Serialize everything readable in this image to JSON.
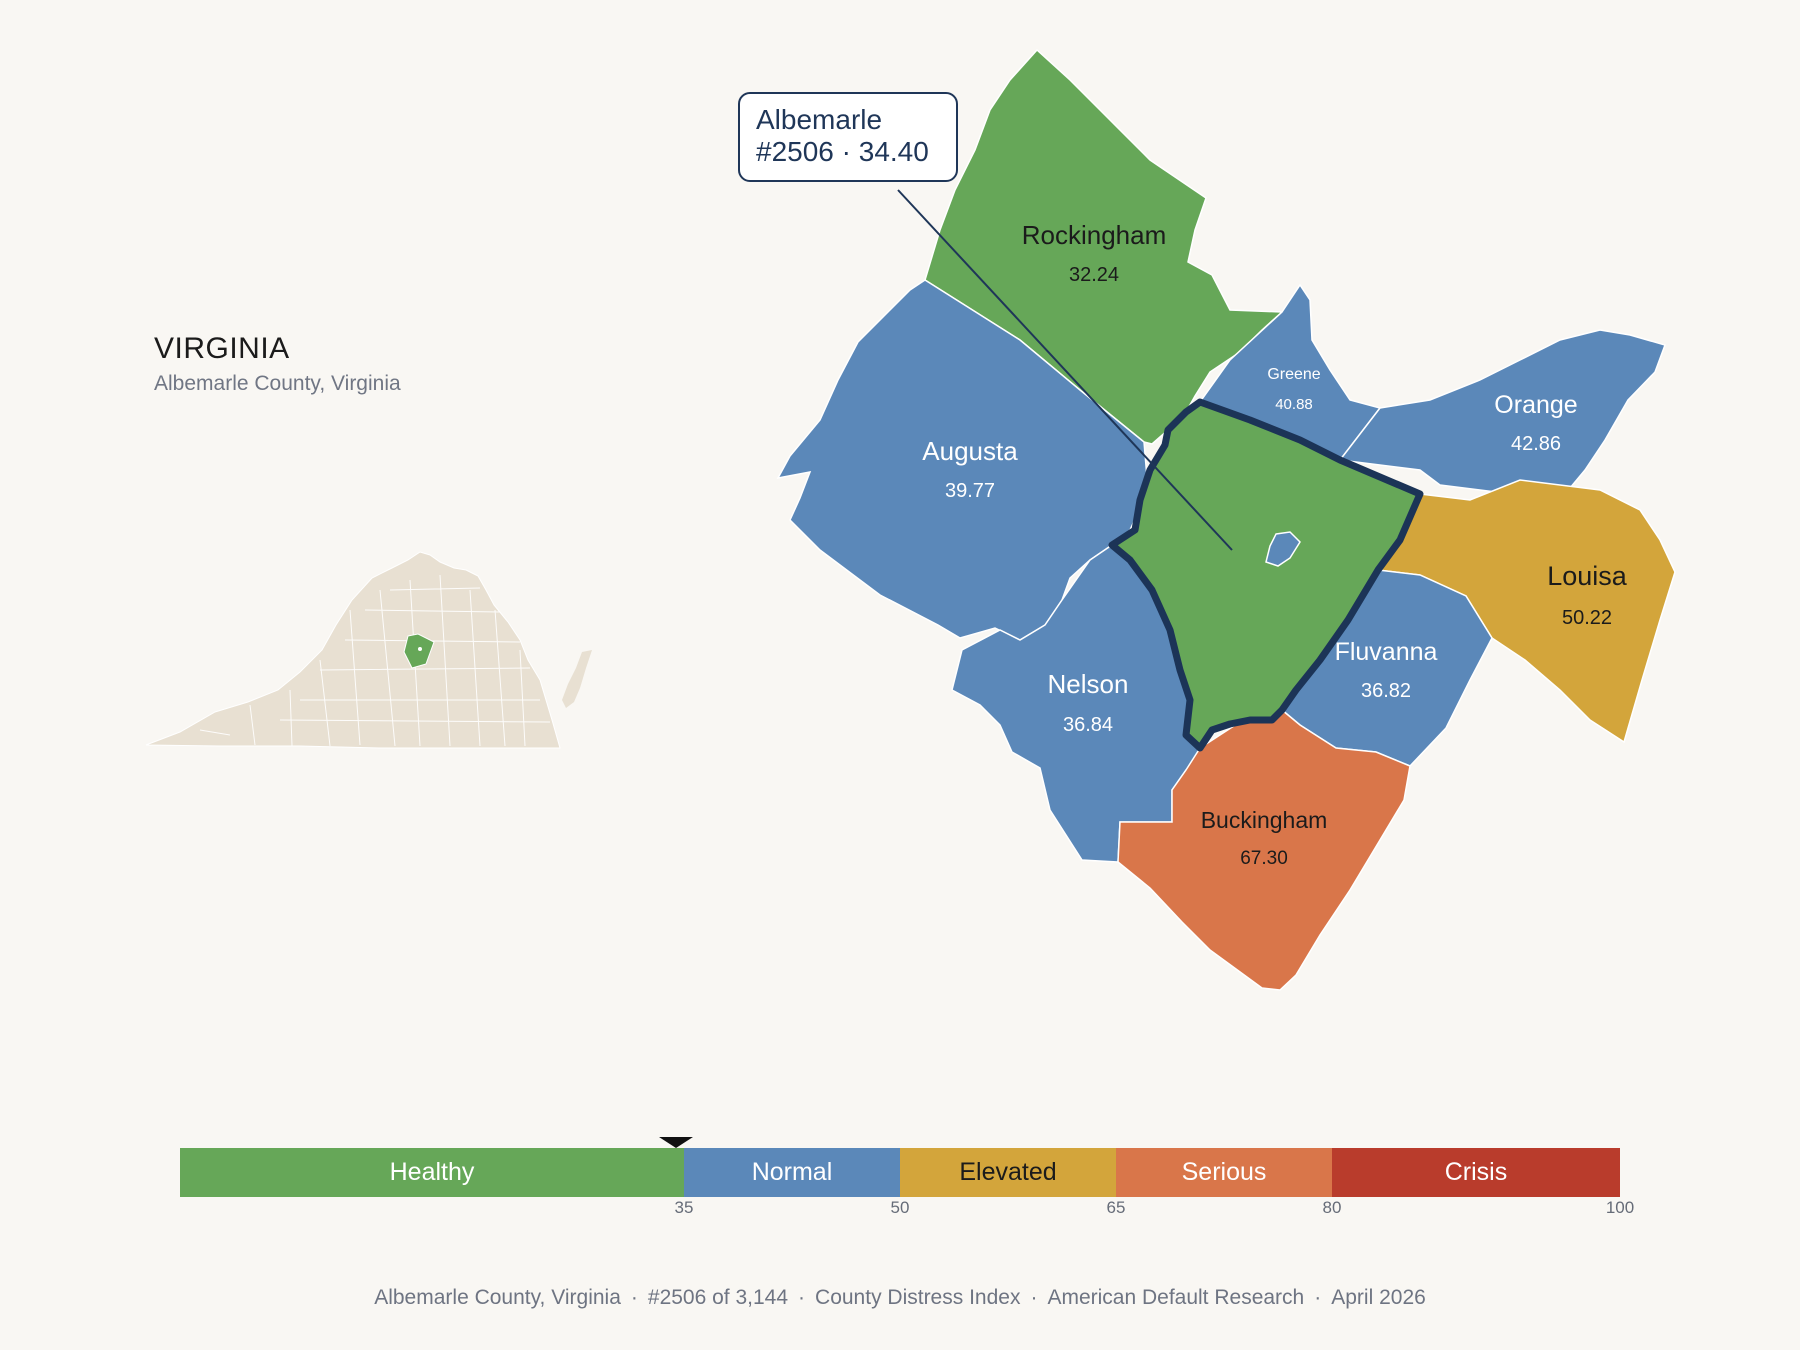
{
  "state": {
    "name": "VIRGINIA",
    "subtitle": "Albemarle County, Virginia"
  },
  "tooltip": {
    "county": "Albemarle",
    "detail": "#2506 · 34.40"
  },
  "counties": [
    {
      "name": "Rockingham",
      "value": "32.24",
      "category": "Healthy"
    },
    {
      "name": "Greene",
      "value": "40.88",
      "category": "Normal"
    },
    {
      "name": "Orange",
      "value": "42.86",
      "category": "Normal"
    },
    {
      "name": "Augusta",
      "value": "39.77",
      "category": "Normal"
    },
    {
      "name": "Louisa",
      "value": "50.22",
      "category": "Elevated"
    },
    {
      "name": "Fluvanna",
      "value": "36.82",
      "category": "Normal"
    },
    {
      "name": "Nelson",
      "value": "36.84",
      "category": "Normal"
    },
    {
      "name": "Buckingham",
      "value": "67.30",
      "category": "Serious"
    }
  ],
  "selected_county": {
    "name": "Albemarle",
    "rank": "#2506",
    "value": 34.4,
    "category": "Healthy"
  },
  "legend": {
    "bands": [
      {
        "label": "Healthy",
        "from": 0,
        "to": 35,
        "color": "#66a758",
        "text_color": "#ffffff"
      },
      {
        "label": "Normal",
        "from": 35,
        "to": 50,
        "color": "#5b88b9",
        "text_color": "#ffffff"
      },
      {
        "label": "Elevated",
        "from": 50,
        "to": 65,
        "color": "#d3a53b",
        "text_color": "#1b1b1b"
      },
      {
        "label": "Serious",
        "from": 65,
        "to": 80,
        "color": "#d9764a",
        "text_color": "#ffffff"
      },
      {
        "label": "Crisis",
        "from": 80,
        "to": 100,
        "color": "#b93c2c",
        "text_color": "#ffffff"
      }
    ],
    "ticks": [
      "35",
      "50",
      "65",
      "80",
      "100"
    ],
    "marker_value": 34.4
  },
  "colors": {
    "highlight_outline": "#1c3457",
    "state_fill": "#e8e0d2"
  },
  "footer": {
    "parts": [
      "Albemarle County, Virginia",
      "#2506 of 3,144",
      "County Distress Index",
      "American Default Research",
      "April 2026"
    ],
    "separator": "·"
  }
}
